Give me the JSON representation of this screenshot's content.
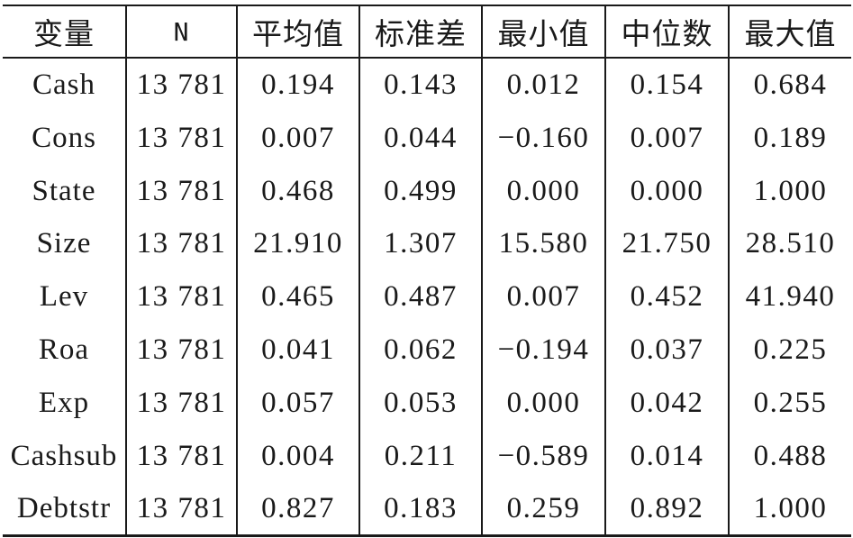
{
  "table": {
    "headers": [
      "变量",
      "N",
      "平均值",
      "标准差",
      "最小值",
      "中位数",
      "最大值"
    ],
    "rows": [
      [
        "Cash",
        "13 781",
        "0.194",
        "0.143",
        "0.012",
        "0.154",
        "0.684"
      ],
      [
        "Cons",
        "13 781",
        "0.007",
        "0.044",
        "−0.160",
        "0.007",
        "0.189"
      ],
      [
        "State",
        "13 781",
        "0.468",
        "0.499",
        "0.000",
        "0.000",
        "1.000"
      ],
      [
        "Size",
        "13 781",
        "21.910",
        "1.307",
        "15.580",
        "21.750",
        "28.510"
      ],
      [
        "Lev",
        "13 781",
        "0.465",
        "0.487",
        "0.007",
        "0.452",
        "41.940"
      ],
      [
        "Roa",
        "13 781",
        "0.041",
        "0.062",
        "−0.194",
        "0.037",
        "0.225"
      ],
      [
        "Exp",
        "13 781",
        "0.057",
        "0.053",
        "0.000",
        "0.042",
        "0.255"
      ],
      [
        "Cashsub",
        "13 781",
        "0.004",
        "0.211",
        "−0.589",
        "0.014",
        "0.488"
      ],
      [
        "Debtstr",
        "13 781",
        "0.827",
        "0.183",
        "0.259",
        "0.892",
        "1.000"
      ]
    ]
  }
}
